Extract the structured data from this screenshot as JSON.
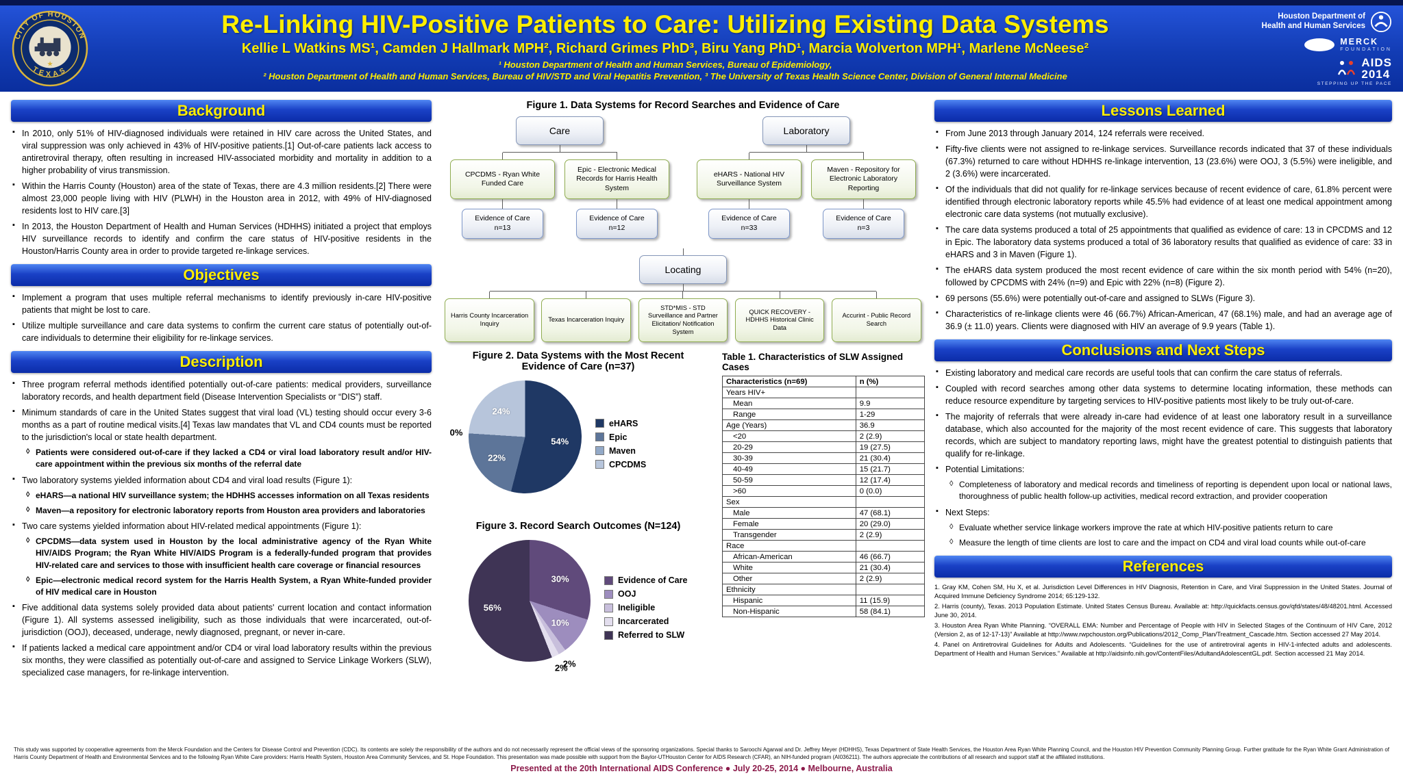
{
  "colors": {
    "header_blue": "#0A2E9E",
    "section_bar_blue": "#1A41C6",
    "title_yellow": "#FFEE00",
    "presented_maroon": "#8B1A4A"
  },
  "header": {
    "title": "Re-Linking HIV-Positive Patients to Care: Utilizing Existing Data Systems",
    "authors": "Kellie L Watkins MS¹, Camden J Hallmark MPH²,  Richard Grimes PhD³,  Biru Yang PhD¹, Marcia Wolverton MPH¹, Marlene McNeese²",
    "affiliation1": "¹ Houston Department of Health and Human Services, Bureau of Epidemiology,",
    "affiliation2": "² Houston Department of Health and Human Services, Bureau of HIV/STD and Viral Hepatitis Prevention, ³ The University of Texas Health Science Center, Division of General Internal Medicine",
    "seal_top": "CITY OF HOUSTON",
    "seal_bottom": "TEXAS",
    "logo_hdhhs_line1": "Houston Department of",
    "logo_hdhhs_line2": "Health and Human Services",
    "logo_merck_line1": "MERCK",
    "logo_merck_line2": "FOUNDATION",
    "logo_aids_line1": "AIDS",
    "logo_aids_line2": "2014",
    "logo_aids_tag": "STEPPING UP THE PACE"
  },
  "left": {
    "background": {
      "heading": "Background",
      "bullets": [
        "In 2010, only 51% of HIV-diagnosed individuals were retained in HIV care across the United States, and viral suppression was only achieved in 43% of HIV-positive patients.[1] Out-of-care patients lack access to antiretroviral therapy, often resulting in increased  HIV-associated morbidity and mortality in addition to a higher probability of virus transmission.",
        "Within the Harris County (Houston) area of the state of Texas, there are 4.3 million residents.[2] There were almost 23,000 people living with HIV (PLWH) in the Houston area in 2012, with 49% of HIV-diagnosed residents lost to HIV care.[3]",
        "In 2013, the Houston Department of Health and Human Services (HDHHS) initiated a project that employs HIV surveillance records to identify and confirm the care status of HIV-positive residents in the Houston/Harris County area in order to provide targeted re-linkage services."
      ]
    },
    "objectives": {
      "heading": "Objectives",
      "bullets": [
        "Implement a program that uses multiple referral mechanisms to identify previously in-care HIV-positive patients that might be lost to care.",
        "Utilize multiple surveillance and care data systems to confirm the current care status of potentially out-of-care individuals to determine their eligibility for re-linkage services."
      ]
    },
    "description": {
      "heading": "Description",
      "items": [
        {
          "level": 1,
          "text": "Three program referral methods identified potentially out-of-care patients: medical providers, surveillance laboratory records, and health department field (Disease Intervention Specialists or “DIS”) staff."
        },
        {
          "level": 1,
          "text": "Minimum standards of care in the United States suggest that viral load (VL) testing should occur every 3-6 months as a part of routine medical visits.[4] Texas law mandates that VL and CD4 counts must be reported to the jurisdiction's local or state health department."
        },
        {
          "level": 2,
          "bold": true,
          "text": "Patients were considered out-of-care if they lacked a CD4 or viral load laboratory result and/or HIV-care appointment within the previous six months of the referral date"
        },
        {
          "level": 1,
          "text": "Two laboratory systems yielded information about CD4 and viral load results (Figure 1):"
        },
        {
          "level": 2,
          "bold": true,
          "text": "eHARS—a national HIV surveillance system; the HDHHS accesses information on all Texas residents"
        },
        {
          "level": 2,
          "bold": true,
          "text": "Maven—a repository for electronic laboratory reports from Houston area providers and laboratories"
        },
        {
          "level": 1,
          "text": "Two care systems yielded information about HIV-related medical appointments (Figure 1):"
        },
        {
          "level": 2,
          "bold": true,
          "text": "CPCDMS—data system used in Houston by the local administrative agency of the Ryan White HIV/AIDS Program; the Ryan White HIV/AIDS Program is a federally-funded program that provides HIV-related care and services to those with insufficient health care coverage or financial resources"
        },
        {
          "level": 2,
          "bold": true,
          "text": "Epic—electronic medical record system for the Harris Health System, a Ryan White-funded provider of HIV medical care in Houston"
        },
        {
          "level": 1,
          "text": "Five additional data systems solely provided data about patients' current location and contact information (Figure 1).  All systems assessed ineligibility, such as those individuals that were incarcerated, out-of-jurisdiction (OOJ), deceased, underage, newly diagnosed, pregnant, or never in-care."
        },
        {
          "level": 1,
          "text": "If patients lacked a medical care appointment and/or CD4 or viral load laboratory results within the previous six months, they were classified as potentially out-of-care and assigned to Service Linkage Workers (SLW), specialized case managers, for re-linkage intervention."
        }
      ]
    }
  },
  "figure1": {
    "title": "Figure 1.  Data Systems for Record Searches and Evidence of Care",
    "care": {
      "parent": "Care",
      "children": [
        {
          "name": "CPCDMS - Ryan White Funded Care",
          "evidence": "Evidence of Care",
          "n": "n=13"
        },
        {
          "name": "Epic - Electronic Medical Records for Harris Health System",
          "evidence": "Evidence of Care",
          "n": "n=12"
        }
      ]
    },
    "laboratory": {
      "parent": "Laboratory",
      "children": [
        {
          "name": "eHARS - National HIV Surveillance System",
          "evidence": "Evidence of Care",
          "n": "n=33"
        },
        {
          "name": "Maven - Repository for Electronic Laboratory Reporting",
          "evidence": "Evidence of Care",
          "n": "n=3"
        }
      ]
    },
    "locating": {
      "parent": "Locating",
      "children": [
        {
          "name": "Harris County Incarceration Inquiry"
        },
        {
          "name": "Texas Incarceration Inquiry"
        },
        {
          "name": "STD*MIS - STD Surveillance and Partner Elicitation/ Notification System"
        },
        {
          "name": "QUICK RECOVERY - HDHHS Historical Clinic Data"
        },
        {
          "name": "Accurint - Public Record Search"
        }
      ]
    }
  },
  "chart_data": [
    {
      "type": "pie",
      "title": "Figure 2. Data Systems with the Most Recent Evidence of Care (n=37)",
      "legend_position": "right",
      "series": [
        {
          "label": "eHARS",
          "value": 54,
          "display": "54%",
          "count": 20,
          "color": "#1F3864"
        },
        {
          "label": "Epic",
          "value": 22,
          "display": "22%",
          "count": 8,
          "color": "#5D7599"
        },
        {
          "label": "Maven",
          "value": 0,
          "display": "0%",
          "count": 0,
          "color": "#93A9C7"
        },
        {
          "label": "CPCDMS",
          "value": 24,
          "display": "24%",
          "count": 9,
          "color": "#B7C5DB"
        }
      ]
    },
    {
      "type": "pie",
      "title": "Figure 3.  Record Search Outcomes (N=124)",
      "legend_position": "right",
      "series": [
        {
          "label": "Evidence of Care",
          "value": 30,
          "display": "30%",
          "color": "#604A7B"
        },
        {
          "label": "OOJ",
          "value": 10,
          "display": "10%",
          "color": "#9D8DBE"
        },
        {
          "label": "Ineligible",
          "value": 2,
          "display": "2%",
          "color": "#C8BFDC"
        },
        {
          "label": "Incarcerated",
          "value": 2,
          "display": "2%",
          "color": "#E3DEEE"
        },
        {
          "label": "Referred to SLW",
          "value": 56,
          "display": "56%",
          "color": "#3F3455"
        }
      ]
    },
    {
      "type": "table",
      "title": "Table 1.  Characteristics of SLW Assigned Cases",
      "columns": [
        "Characteristics (n=69)",
        "n (%)"
      ],
      "rows": [
        {
          "label": "Years HIV+",
          "value": ""
        },
        {
          "label": "Mean",
          "value": "9.9",
          "indent": true
        },
        {
          "label": "Range",
          "value": "1-29",
          "indent": true
        },
        {
          "label": "Age (Years)",
          "value": "36.9"
        },
        {
          "label": "<20",
          "value": "2 (2.9)",
          "indent": true
        },
        {
          "label": "20-29",
          "value": "19 (27.5)",
          "indent": true
        },
        {
          "label": "30-39",
          "value": "21 (30.4)",
          "indent": true
        },
        {
          "label": "40-49",
          "value": "15 (21.7)",
          "indent": true
        },
        {
          "label": "50-59",
          "value": "12 (17.4)",
          "indent": true
        },
        {
          "label": ">60",
          "value": "0 (0.0)",
          "indent": true
        },
        {
          "label": "Sex",
          "value": ""
        },
        {
          "label": "Male",
          "value": "47 (68.1)",
          "indent": true
        },
        {
          "label": "Female",
          "value": "20 (29.0)",
          "indent": true
        },
        {
          "label": "Transgender",
          "value": "2 (2.9)",
          "indent": true
        },
        {
          "label": "Race",
          "value": ""
        },
        {
          "label": "African-American",
          "value": "46 (66.7)",
          "indent": true
        },
        {
          "label": "White",
          "value": "21 (30.4)",
          "indent": true
        },
        {
          "label": "Other",
          "value": "2 (2.9)",
          "indent": true
        },
        {
          "label": "Ethnicity",
          "value": ""
        },
        {
          "label": "Hispanic",
          "value": "11 (15.9)",
          "indent": true
        },
        {
          "label": "Non-Hispanic",
          "value": "58 (84.1)",
          "indent": true
        }
      ]
    }
  ],
  "right": {
    "lessons": {
      "heading": "Lessons Learned",
      "bullets": [
        "From June 2013 through January 2014, 124 referrals were received.",
        "Fifty-five clients were not assigned to re-linkage services. Surveillance records indicated that 37 of these individuals (67.3%) returned to care without HDHHS re-linkage intervention, 13 (23.6%) were OOJ, 3 (5.5%) were ineligible, and 2 (3.6%) were incarcerated.",
        "Of the individuals that did not qualify for re-linkage services because of recent evidence of care, 61.8% percent were identified through electronic laboratory reports while 45.5% had evidence of at least one medical appointment among electronic care data systems (not mutually exclusive).",
        "The care data systems produced a total of 25 appointments that qualified as evidence of care: 13 in CPCDMS and 12 in Epic.  The laboratory data systems produced a total of 36 laboratory results that qualified as evidence of care: 33 in eHARS and 3 in Maven (Figure 1).",
        "The eHARS data system produced the most recent evidence of care within the six month period with 54% (n=20), followed by CPCDMS with 24% (n=9) and Epic with 22% (n=8) (Figure 2).",
        "69 persons (55.6%) were potentially out-of-care and assigned to SLWs (Figure 3).",
        "Characteristics of re-linkage clients were 46 (66.7%) African-American,  47 (68.1%) male, and had an average age of 36.9 (± 11.0) years. Clients were diagnosed with HIV an average of 9.9 years  (Table 1)."
      ]
    },
    "conclusions": {
      "heading": "Conclusions and Next Steps",
      "items": [
        {
          "level": 1,
          "text": "Existing laboratory and medical care records are useful tools that can confirm the care status of referrals."
        },
        {
          "level": 1,
          "text": "Coupled with record searches among other data systems to determine locating information, these methods can reduce resource expenditure by targeting services to HIV-positive patients most likely to be truly out-of-care."
        },
        {
          "level": 1,
          "text": "The majority of referrals that were already in-care had evidence of at least one laboratory result in a surveillance database, which also accounted for the majority of the most recent evidence of care.  This suggests that laboratory records, which are subject to mandatory reporting laws, might have the greatest potential to distinguish patients that qualify for re-linkage."
        },
        {
          "level": 1,
          "text": "Potential Limitations:"
        },
        {
          "level": 2,
          "text": "Completeness of laboratory and medical records and timeliness of reporting is dependent upon local or national laws, thoroughness of public health follow-up activities, medical record extraction, and provider cooperation"
        },
        {
          "level": 1,
          "text": "Next Steps:"
        },
        {
          "level": 2,
          "text": "Evaluate whether service linkage workers improve the rate at which HIV-positive patients return to care"
        },
        {
          "level": 2,
          "text": "Measure the length of time clients are lost to care and the impact on CD4 and viral load counts while out-of-care"
        }
      ]
    },
    "references": {
      "heading": "References",
      "items": [
        "1. Gray KM, Cohen SM, Hu X, et al. Jurisdiction Level Differences in HIV Diagnosis, Retention in Care, and Viral Suppression in the United States. Journal of Acquired Immune Deficiency Syndrome 2014; 65:129-132.",
        "2. Harris (county), Texas. 2013 Population Estimate. United States Census Bureau. Available at: http://quickfacts.census.gov/qfd/states/48/48201.html. Accessed June 30, 2014.",
        "3. Houston Area Ryan White Planning.  “OVERALL EMA: Number and Percentage of People with HIV in Selected Stages of the Continuum of HIV Care, 2012 (Version 2, as of 12-17-13)” Available at http://www.rwpchouston.org/Publications/2012_Comp_Plan/Treatment_Cascade.htm.  Section accessed 27 May 2014.",
        "4. Panel on Antiretroviral Guidelines for Adults and Adolescents. “Guidelines for the use of antiretroviral agents in HIV-1-infected adults and adolescents. Department of Health and Human Services.” Available at http://aidsinfo.nih.gov/ContentFiles/AdultandAdolescentGL.pdf. Section accessed 21 May 2014."
      ]
    }
  },
  "footer": {
    "acknowledgment": "This study was supported by cooperative agreements from the Merck Foundation and the Centers for Disease Control and Prevention (CDC). Its contents are solely the responsibility of the authors and do not necessarily represent the official views of the sponsoring organizations. Special thanks to Saroochi Agarwal and Dr. Jeffrey Meyer (HDHHS), Texas Department of State Health Services, the Houston Area Ryan White Planning Council, and the Houston HIV Prevention Community Planning Group. Further gratitude for the Ryan White Grant Administration of Harris County Department of Health and Environmental Services and to the following Ryan White Care providers: Harris Health System, Houston Area Community Services, and St. Hope Foundation. This presentation was made possible with support from the Baylor-UTHouston Center for AIDS Research (CFAR), an NIH-funded program (AI036211). The authors appreciate the contributions of all research and support staff at the affiliated institutions.",
    "presented": "Presented at the 20th International AIDS Conference  ●  July 20-25, 2014  ●  Melbourne, Australia"
  }
}
